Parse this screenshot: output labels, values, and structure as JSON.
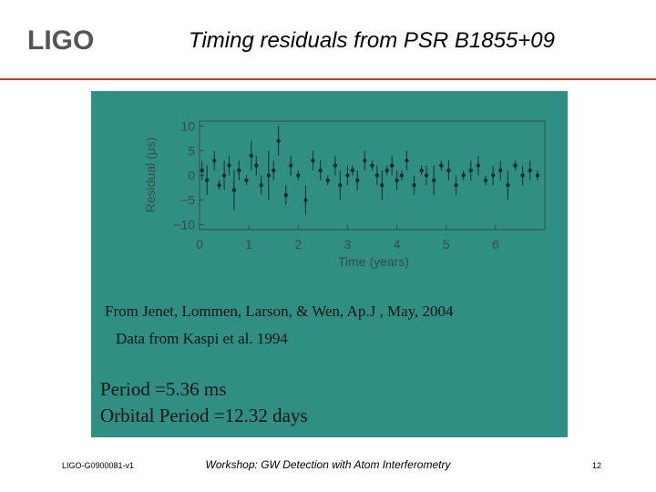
{
  "header": {
    "logo": "LIGO",
    "title": "Timing residuals from PSR B1855+09"
  },
  "chart_data": {
    "type": "scatter",
    "xlabel": "Time (years)",
    "ylabel": "Residual (μs)",
    "x": [
      0.05,
      0.15,
      0.3,
      0.4,
      0.5,
      0.6,
      0.7,
      0.8,
      0.95,
      1.05,
      1.15,
      1.25,
      1.4,
      1.5,
      1.6,
      1.75,
      1.85,
      2.0,
      2.15,
      2.3,
      2.45,
      2.6,
      2.75,
      2.85,
      3.0,
      3.1,
      3.2,
      3.35,
      3.5,
      3.6,
      3.7,
      3.8,
      3.9,
      4.0,
      4.1,
      4.2,
      4.35,
      4.5,
      4.6,
      4.75,
      4.9,
      5.05,
      5.2,
      5.35,
      5.5,
      5.65,
      5.8,
      5.95,
      6.1,
      6.25,
      6.4,
      6.55,
      6.7,
      6.85
    ],
    "values": [
      1,
      -1,
      3,
      -2,
      0,
      2,
      -3,
      1,
      -1,
      4,
      2,
      -2,
      0,
      1,
      7,
      -4,
      2,
      0,
      -5,
      3,
      1,
      -1,
      2,
      -2,
      0,
      1,
      -1,
      3,
      2,
      0,
      -2,
      1,
      2,
      -1,
      0,
      3,
      -2,
      1,
      0,
      -1,
      2,
      1,
      -2,
      0,
      1,
      2,
      -1,
      0,
      1,
      -2,
      2,
      0,
      1,
      0
    ],
    "errors": [
      2,
      3,
      2,
      1,
      3,
      2,
      4,
      2,
      1,
      3,
      2,
      2,
      5,
      2,
      3,
      2,
      2,
      1,
      3,
      2,
      2,
      1,
      2,
      3,
      2,
      1,
      2,
      2,
      1,
      2,
      3,
      1,
      2,
      2,
      1,
      2,
      2,
      1,
      2,
      3,
      1,
      2,
      2,
      1,
      2,
      2,
      1,
      2,
      2,
      3,
      1,
      2,
      2,
      1
    ],
    "color": "#1c2b2a",
    "xlim": [
      0,
      7
    ],
    "ylim": [
      -11,
      11
    ],
    "xticks": [
      0,
      1,
      2,
      3,
      4,
      5,
      6
    ],
    "yticks": [
      10,
      5,
      0,
      {
        "value": -5,
        "label": "−5"
      },
      {
        "value": -10,
        "label": "−10"
      }
    ],
    "annotations": [
      "From Jenet, Lommen, Larson, & Wen, Ap.J , May, 2004",
      "Data from Kaspi et al. 1994",
      "Period =5.36 ms",
      "Orbital Period =12.32 days"
    ]
  },
  "footer": {
    "id": "LIGO-G0900081-v1",
    "event": "Workshop: GW Detection with Atom Interferometry",
    "page": "12"
  }
}
